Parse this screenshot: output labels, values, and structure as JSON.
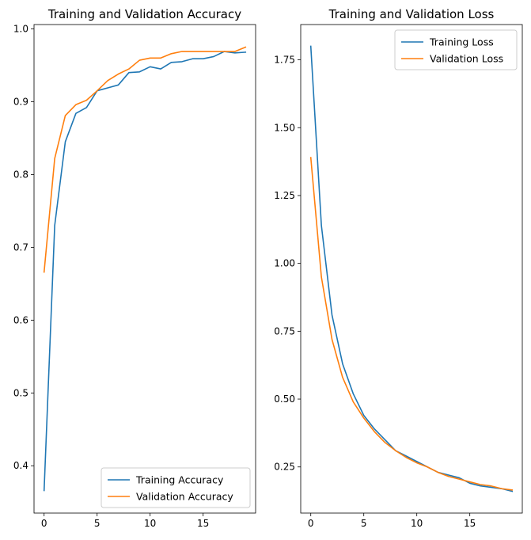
{
  "chart_data": [
    {
      "type": "line",
      "title": "Training and Validation Accuracy",
      "xlabel": "",
      "ylabel": "",
      "xlim": [
        -0.95,
        19.95
      ],
      "ylim": [
        0.335,
        1.006
      ],
      "xticks": [
        0,
        5,
        10,
        15
      ],
      "yticks": [
        0.4,
        0.5,
        0.6,
        0.7,
        0.8,
        0.9,
        1.0
      ],
      "ytick_labels": [
        "0.4",
        "0.5",
        "0.6",
        "0.7",
        "0.8",
        "0.9",
        "1.0"
      ],
      "grid": false,
      "legend_position": "lower-right",
      "x": [
        0,
        1,
        2,
        3,
        4,
        5,
        6,
        7,
        8,
        9,
        10,
        11,
        12,
        13,
        14,
        15,
        16,
        17,
        18,
        19
      ],
      "series": [
        {
          "name": "Training Accuracy",
          "color": "#1f77b4",
          "values": [
            0.366,
            0.73,
            0.845,
            0.884,
            0.892,
            0.915,
            0.919,
            0.923,
            0.94,
            0.941,
            0.948,
            0.945,
            0.954,
            0.955,
            0.959,
            0.959,
            0.962,
            0.969,
            0.967,
            0.968
          ]
        },
        {
          "name": "Validation Accuracy",
          "color": "#ff7f0e",
          "values": [
            0.666,
            0.822,
            0.881,
            0.896,
            0.902,
            0.915,
            0.929,
            0.938,
            0.945,
            0.957,
            0.96,
            0.96,
            0.966,
            0.969,
            0.969,
            0.969,
            0.969,
            0.969,
            0.969,
            0.975
          ]
        }
      ]
    },
    {
      "type": "line",
      "title": "Training and Validation Loss",
      "xlabel": "",
      "ylabel": "",
      "xlim": [
        -0.95,
        19.95
      ],
      "ylim": [
        0.08,
        1.88
      ],
      "xticks": [
        0,
        5,
        10,
        15
      ],
      "yticks": [
        0.25,
        0.5,
        0.75,
        1.0,
        1.25,
        1.5,
        1.75
      ],
      "ytick_labels": [
        "0.25",
        "0.50",
        "0.75",
        "1.00",
        "1.25",
        "1.50",
        "1.75"
      ],
      "grid": false,
      "legend_position": "upper-right",
      "x": [
        0,
        1,
        2,
        3,
        4,
        5,
        6,
        7,
        8,
        9,
        10,
        11,
        12,
        13,
        14,
        15,
        16,
        17,
        18,
        19
      ],
      "series": [
        {
          "name": "Training Loss",
          "color": "#1f77b4",
          "values": [
            1.8,
            1.14,
            0.81,
            0.63,
            0.52,
            0.44,
            0.39,
            0.35,
            0.31,
            0.29,
            0.27,
            0.25,
            0.23,
            0.22,
            0.21,
            0.19,
            0.18,
            0.175,
            0.17,
            0.16
          ]
        },
        {
          "name": "Validation Loss",
          "color": "#ff7f0e",
          "values": [
            1.39,
            0.95,
            0.72,
            0.58,
            0.49,
            0.43,
            0.38,
            0.34,
            0.31,
            0.285,
            0.265,
            0.25,
            0.23,
            0.215,
            0.205,
            0.195,
            0.185,
            0.18,
            0.17,
            0.165
          ]
        }
      ]
    }
  ]
}
